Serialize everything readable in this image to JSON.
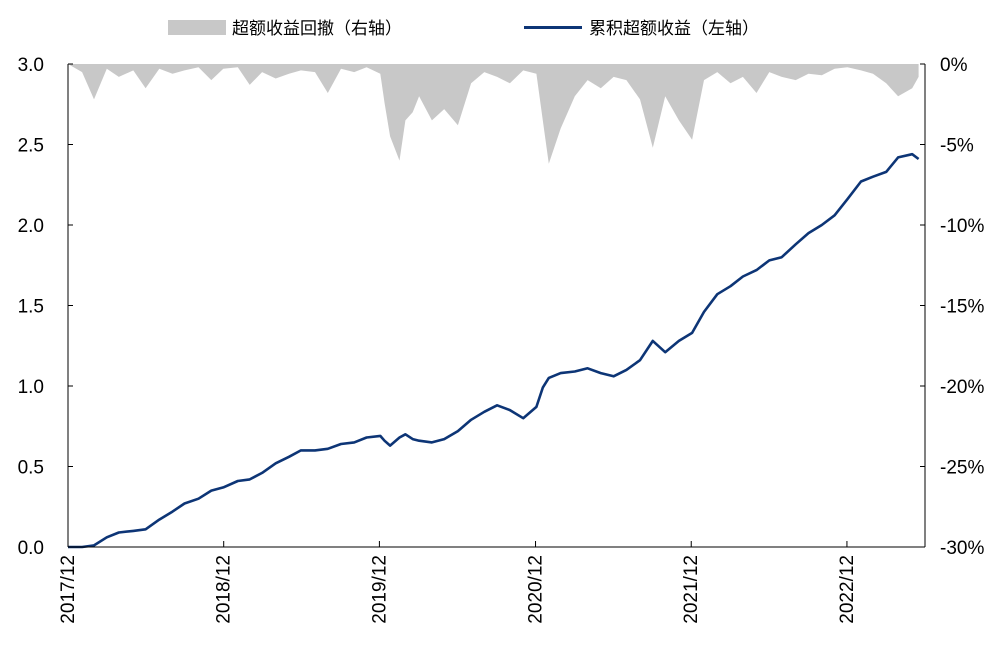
{
  "chart_data": {
    "type": "line",
    "legend_position": "top",
    "colors": {
      "drawdown": "#c8c8c8",
      "excess": "#0d3576"
    },
    "series": [
      {
        "name": "超额收益回撤（右轴）",
        "type": "area",
        "axis": "right",
        "x": [
          "2017-12-29",
          "2018-01-31",
          "2018-02-28",
          "2018-03-30",
          "2018-04-27",
          "2018-05-31",
          "2018-06-29",
          "2018-07-31",
          "2018-08-31",
          "2018-09-28",
          "2018-10-31",
          "2018-11-30",
          "2018-12-28",
          "2019-01-31",
          "2019-02-28",
          "2019-03-29",
          "2019-04-30",
          "2019-05-31",
          "2019-06-28",
          "2019-07-31",
          "2019-08-30",
          "2019-09-30",
          "2019-10-31",
          "2019-11-29",
          "2019-12-31",
          "2020-01-10",
          "2020-01-23",
          "2020-02-14",
          "2020-02-28",
          "2020-03-16",
          "2020-03-31",
          "2020-04-30",
          "2020-05-29",
          "2020-06-30",
          "2020-07-31",
          "2020-08-31",
          "2020-09-30",
          "2020-10-30",
          "2020-11-30",
          "2020-12-31",
          "2021-01-15",
          "2021-01-29",
          "2021-02-26",
          "2021-03-31",
          "2021-04-30",
          "2021-05-31",
          "2021-06-30",
          "2021-07-30",
          "2021-08-31",
          "2021-09-30",
          "2021-10-29",
          "2021-11-30",
          "2021-12-31",
          "2022-01-28",
          "2022-02-28",
          "2022-03-31",
          "2022-04-29",
          "2022-05-31",
          "2022-06-30",
          "2022-07-29",
          "2022-08-31",
          "2022-09-30",
          "2022-10-31",
          "2022-11-30",
          "2022-12-30",
          "2023-01-31",
          "2023-02-28",
          "2023-03-31",
          "2023-04-28",
          "2023-05-31",
          "2023-06-15"
        ],
        "values": [
          0,
          -0.5,
          -2.2,
          -0.3,
          -0.8,
          -0.4,
          -1.5,
          -0.3,
          -0.6,
          -0.4,
          -0.2,
          -1.0,
          -0.3,
          -0.2,
          -1.3,
          -0.5,
          -0.9,
          -0.6,
          -0.4,
          -0.5,
          -1.8,
          -0.3,
          -0.5,
          -0.2,
          -0.6,
          -2.4,
          -4.5,
          -6.0,
          -3.5,
          -3.0,
          -2.0,
          -3.5,
          -2.8,
          -3.8,
          -1.2,
          -0.5,
          -0.8,
          -1.2,
          -0.4,
          -0.6,
          -3.5,
          -6.2,
          -4.0,
          -2.0,
          -1.0,
          -1.5,
          -0.8,
          -1.0,
          -2.2,
          -5.2,
          -2.0,
          -3.5,
          -4.7,
          -1.0,
          -0.5,
          -1.2,
          -0.8,
          -1.8,
          -0.5,
          -0.8,
          -1.0,
          -0.6,
          -0.7,
          -0.3,
          -0.2,
          -0.4,
          -0.6,
          -1.2,
          -2.0,
          -1.5,
          -0.8
        ]
      },
      {
        "name": "累积超额收益（左轴）",
        "type": "line",
        "axis": "left",
        "x": [
          "2017-12-29",
          "2018-01-31",
          "2018-02-28",
          "2018-03-30",
          "2018-04-27",
          "2018-05-31",
          "2018-06-29",
          "2018-07-31",
          "2018-08-31",
          "2018-09-28",
          "2018-10-31",
          "2018-11-30",
          "2018-12-28",
          "2019-01-31",
          "2019-02-28",
          "2019-03-29",
          "2019-04-30",
          "2019-05-31",
          "2019-06-28",
          "2019-07-31",
          "2019-08-30",
          "2019-09-30",
          "2019-10-31",
          "2019-11-29",
          "2019-12-31",
          "2020-01-10",
          "2020-01-23",
          "2020-02-14",
          "2020-02-28",
          "2020-03-16",
          "2020-03-31",
          "2020-04-30",
          "2020-05-29",
          "2020-06-30",
          "2020-07-31",
          "2020-08-31",
          "2020-09-30",
          "2020-10-30",
          "2020-11-30",
          "2020-12-31",
          "2021-01-15",
          "2021-01-29",
          "2021-02-26",
          "2021-03-31",
          "2021-04-30",
          "2021-05-31",
          "2021-06-30",
          "2021-07-30",
          "2021-08-31",
          "2021-09-30",
          "2021-10-29",
          "2021-11-30",
          "2021-12-31",
          "2022-01-28",
          "2022-02-28",
          "2022-03-31",
          "2022-04-29",
          "2022-05-31",
          "2022-06-30",
          "2022-07-29",
          "2022-08-31",
          "2022-09-30",
          "2022-10-31",
          "2022-11-30",
          "2022-12-30",
          "2023-01-31",
          "2023-02-28",
          "2023-03-31",
          "2023-04-28",
          "2023-05-31",
          "2023-06-15"
        ],
        "values": [
          0.0,
          0.0,
          0.01,
          0.06,
          0.09,
          0.1,
          0.11,
          0.17,
          0.22,
          0.27,
          0.3,
          0.35,
          0.37,
          0.41,
          0.42,
          0.46,
          0.52,
          0.56,
          0.6,
          0.6,
          0.61,
          0.64,
          0.65,
          0.68,
          0.69,
          0.66,
          0.63,
          0.68,
          0.7,
          0.67,
          0.66,
          0.65,
          0.67,
          0.72,
          0.79,
          0.84,
          0.88,
          0.85,
          0.8,
          0.87,
          0.99,
          1.05,
          1.08,
          1.09,
          1.11,
          1.08,
          1.06,
          1.1,
          1.16,
          1.28,
          1.21,
          1.28,
          1.33,
          1.46,
          1.57,
          1.62,
          1.68,
          1.72,
          1.78,
          1.8,
          1.88,
          1.95,
          2.0,
          2.06,
          2.16,
          2.27,
          2.3,
          2.33,
          2.42,
          2.44,
          2.41
        ]
      }
    ],
    "x_ticks": [
      "2017/12",
      "2018/12",
      "2019/12",
      "2020/12",
      "2021/12",
      "2022/12"
    ],
    "x_range": [
      "2017-12-29",
      "2023-06-30"
    ],
    "y_left": {
      "range": [
        0,
        3.0
      ],
      "ticks": [
        "0.0",
        "0.5",
        "1.0",
        "1.5",
        "2.0",
        "2.5",
        "3.0"
      ]
    },
    "y_right": {
      "range": [
        -30,
        0
      ],
      "ticks": [
        "-30%",
        "-25%",
        "-20%",
        "-15%",
        "-10%",
        "-5%",
        "0%"
      ]
    },
    "grid": false
  }
}
